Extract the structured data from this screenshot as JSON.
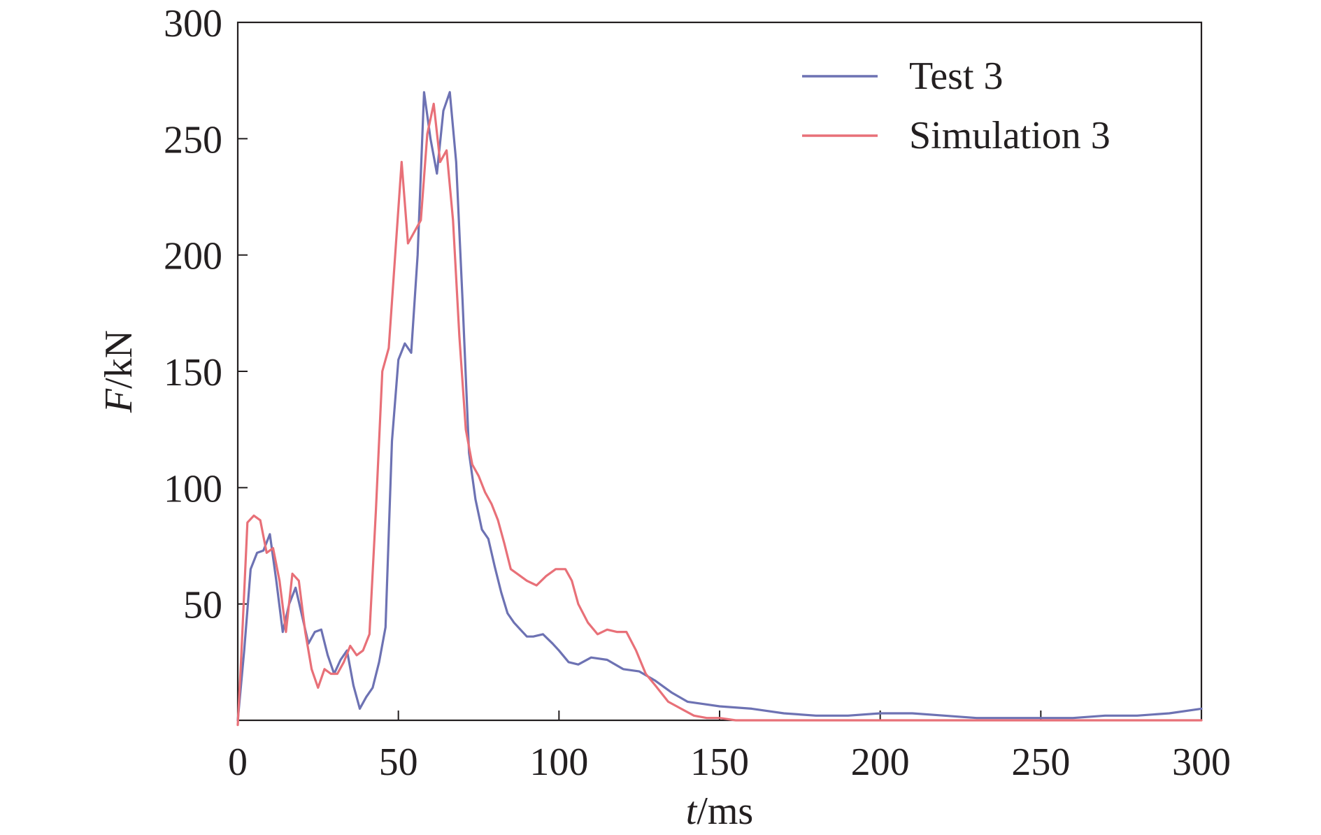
{
  "chart_data": {
    "type": "line",
    "xlabel_var": "t",
    "xlabel_unit": "/ms",
    "ylabel_var": "F",
    "ylabel_unit": "/kN",
    "xlim": [
      0,
      300
    ],
    "ylim": [
      0,
      300
    ],
    "xticks": [
      "0",
      "50",
      "100",
      "150",
      "200",
      "250",
      "300"
    ],
    "yticks": [
      "50",
      "100",
      "150",
      "200",
      "250",
      "300"
    ],
    "grid": false,
    "legend_position": "top-right",
    "series": [
      {
        "name": "Test 3",
        "color": "#6d72b3",
        "x": [
          0,
          2,
          4,
          6,
          8,
          10,
          12,
          14,
          16,
          18,
          20,
          22,
          24,
          26,
          28,
          30,
          32,
          34,
          36,
          38,
          40,
          42,
          44,
          46,
          48,
          50,
          52,
          54,
          56,
          58,
          60,
          62,
          64,
          66,
          68,
          70,
          72,
          74,
          76,
          78,
          80,
          82,
          84,
          86,
          88,
          90,
          92,
          95,
          98,
          100,
          103,
          106,
          110,
          115,
          120,
          125,
          130,
          135,
          140,
          145,
          150,
          160,
          170,
          180,
          190,
          200,
          210,
          220,
          230,
          240,
          250,
          260,
          270,
          280,
          290,
          300
        ],
        "values": [
          0,
          30,
          65,
          72,
          73,
          80,
          60,
          38,
          50,
          57,
          45,
          33,
          38,
          39,
          28,
          20,
          26,
          30,
          15,
          5,
          10,
          14,
          25,
          40,
          120,
          155,
          162,
          158,
          200,
          270,
          250,
          235,
          262,
          270,
          240,
          180,
          115,
          95,
          82,
          78,
          66,
          55,
          46,
          42,
          39,
          36,
          36,
          37,
          33,
          30,
          25,
          24,
          27,
          26,
          22,
          21,
          17,
          12,
          8,
          7,
          6,
          5,
          3,
          2,
          2,
          3,
          3,
          2,
          1,
          1,
          1,
          1,
          2,
          2,
          3,
          5
        ]
      },
      {
        "name": "Simulation 3",
        "color": "#e87078",
        "x": [
          0,
          1,
          3,
          5,
          7,
          9,
          11,
          13,
          15,
          17,
          19,
          21,
          23,
          25,
          27,
          29,
          31,
          33,
          35,
          37,
          39,
          41,
          43,
          45,
          47,
          49,
          51,
          53,
          55,
          57,
          59,
          61,
          63,
          65,
          67,
          69,
          71,
          73,
          75,
          77,
          79,
          81,
          83,
          85,
          87,
          90,
          93,
          96,
          99,
          102,
          104,
          106,
          109,
          112,
          115,
          118,
          121,
          124,
          127,
          130,
          134,
          138,
          142,
          146,
          150,
          155,
          160,
          170,
          180,
          200,
          250,
          300
        ],
        "values": [
          -2,
          25,
          85,
          88,
          86,
          72,
          74,
          60,
          38,
          63,
          60,
          38,
          22,
          14,
          22,
          20,
          20,
          25,
          32,
          28,
          30,
          37,
          90,
          150,
          160,
          200,
          240,
          205,
          210,
          215,
          252,
          265,
          240,
          245,
          215,
          165,
          125,
          110,
          105,
          98,
          93,
          86,
          76,
          65,
          63,
          60,
          58,
          62,
          65,
          65,
          60,
          50,
          42,
          37,
          39,
          38,
          38,
          30,
          20,
          15,
          8,
          5,
          2,
          1,
          1,
          0,
          0,
          0,
          0,
          0,
          0,
          0
        ]
      }
    ]
  }
}
